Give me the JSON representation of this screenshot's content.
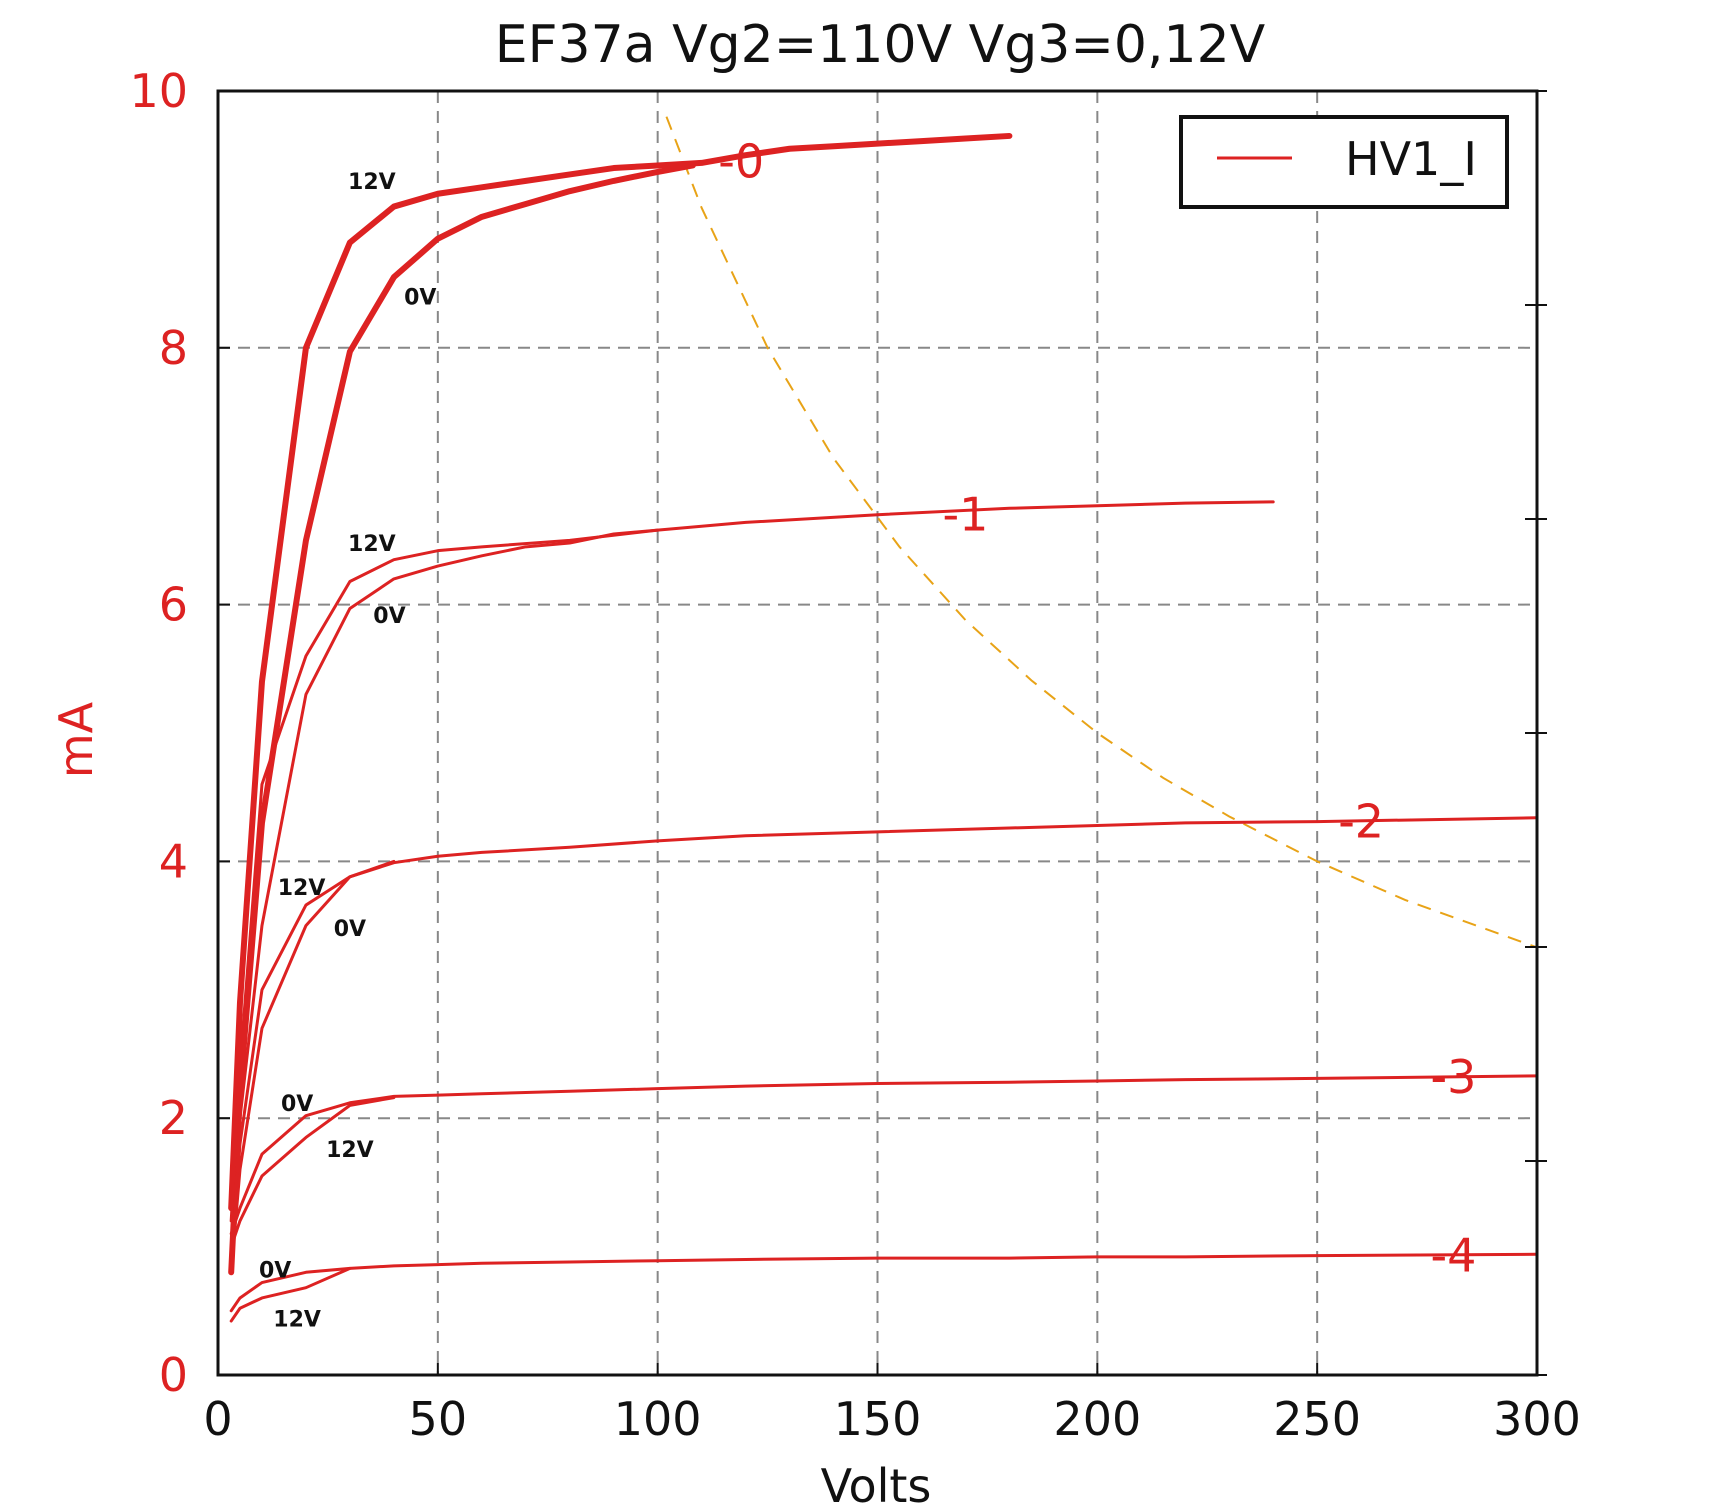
{
  "chart_data": {
    "type": "line",
    "title": "EF37a Vg2=110V Vg3=0,12V",
    "xlabel": "Volts",
    "ylabel": "mA",
    "xlim": [
      0,
      300
    ],
    "ylim": [
      0,
      10
    ],
    "xticks": [
      0,
      50,
      100,
      150,
      200,
      250,
      300
    ],
    "yticks": [
      0,
      2,
      4,
      6,
      8,
      10
    ],
    "grid": true,
    "legend": {
      "position": "top-right",
      "entries": [
        "HV1_I"
      ]
    },
    "colors": {
      "series": "#dd2222",
      "axis_text": "#dd2222",
      "load_line": "#e8a317",
      "grid": "#888888",
      "frame": "#111111"
    },
    "series": [
      {
        "bias_label": "-0",
        "vg3_label": "12V",
        "thick": true,
        "x": [
          3,
          5,
          10,
          20,
          30,
          40,
          50,
          60,
          70,
          80,
          90,
          100,
          110,
          120,
          130,
          140,
          150,
          160,
          170,
          180
        ],
        "y": [
          1.3,
          2.9,
          5.4,
          8.0,
          8.82,
          9.1,
          9.2,
          9.25,
          9.3,
          9.35,
          9.4,
          9.42,
          9.44,
          9.5,
          9.55,
          9.57,
          9.59,
          9.61,
          9.63,
          9.65
        ]
      },
      {
        "bias_label": "-0",
        "vg3_label": "0V",
        "thick": true,
        "x": [
          3,
          5,
          10,
          20,
          30,
          40,
          50,
          60,
          70,
          80,
          90,
          100,
          108
        ],
        "y": [
          0.8,
          2.2,
          4.3,
          6.5,
          7.97,
          8.55,
          8.85,
          9.02,
          9.12,
          9.22,
          9.3,
          9.37,
          9.42
        ]
      },
      {
        "bias_label": "-1",
        "vg3_label": "12V",
        "thick": false,
        "x": [
          3,
          5,
          10,
          20,
          30,
          40,
          50,
          60,
          80,
          100,
          120,
          150,
          180,
          200,
          220,
          240
        ],
        "y": [
          1.2,
          2.4,
          4.6,
          5.6,
          6.18,
          6.35,
          6.42,
          6.45,
          6.5,
          6.58,
          6.64,
          6.7,
          6.75,
          6.77,
          6.79,
          6.8
        ]
      },
      {
        "bias_label": "-1",
        "vg3_label": "0V",
        "thick": false,
        "x": [
          3,
          5,
          10,
          20,
          30,
          40,
          50,
          60,
          70,
          80,
          90,
          100
        ],
        "y": [
          0.8,
          2.0,
          3.5,
          5.3,
          5.97,
          6.2,
          6.3,
          6.38,
          6.45,
          6.48,
          6.55,
          6.58
        ]
      },
      {
        "bias_label": "-2",
        "vg3_label": "12V",
        "thick": false,
        "x": [
          3,
          5,
          10,
          20,
          30,
          40,
          50,
          60,
          80,
          100,
          120,
          150,
          180,
          200,
          220,
          250,
          300
        ],
        "y": [
          0.8,
          1.8,
          3.0,
          3.66,
          3.88,
          3.99,
          4.04,
          4.07,
          4.11,
          4.16,
          4.2,
          4.23,
          4.26,
          4.28,
          4.3,
          4.31,
          4.34
        ]
      },
      {
        "bias_label": "-2",
        "vg3_label": "0V",
        "thick": false,
        "x": [
          3,
          5,
          10,
          20,
          30,
          40
        ],
        "y": [
          0.8,
          1.6,
          2.7,
          3.5,
          3.88,
          4.0
        ]
      },
      {
        "bias_label": "-3",
        "vg3_label": "0V",
        "thick": false,
        "x": [
          3,
          5,
          10,
          20,
          30,
          40,
          50,
          60,
          80,
          100,
          120,
          150,
          180,
          200,
          220,
          250,
          300
        ],
        "y": [
          1.1,
          1.3,
          1.72,
          2.02,
          2.12,
          2.17,
          2.18,
          2.19,
          2.21,
          2.23,
          2.25,
          2.27,
          2.28,
          2.29,
          2.3,
          2.31,
          2.33
        ]
      },
      {
        "bias_label": "-3",
        "vg3_label": "12V",
        "thick": false,
        "x": [
          3,
          5,
          10,
          20,
          30,
          40
        ],
        "y": [
          1.0,
          1.2,
          1.55,
          1.85,
          2.1,
          2.16
        ]
      },
      {
        "bias_label": "-4",
        "vg3_label": "0V",
        "thick": false,
        "x": [
          3,
          5,
          10,
          20,
          30,
          40,
          50,
          60,
          80,
          100,
          120,
          150,
          180,
          200,
          220,
          250,
          300
        ],
        "y": [
          0.5,
          0.6,
          0.72,
          0.8,
          0.83,
          0.85,
          0.86,
          0.87,
          0.88,
          0.89,
          0.9,
          0.91,
          0.91,
          0.92,
          0.92,
          0.93,
          0.94
        ]
      },
      {
        "bias_label": "-4",
        "vg3_label": "12V",
        "thick": false,
        "x": [
          3,
          5,
          10,
          20,
          30
        ],
        "y": [
          0.42,
          0.52,
          0.6,
          0.68,
          0.83
        ]
      }
    ],
    "load_line": {
      "style": "dashed",
      "x": [
        102,
        110,
        125,
        140,
        155,
        170,
        185,
        200,
        215,
        230,
        250,
        270,
        300
      ],
      "y": [
        9.8,
        9.09,
        8.0,
        7.14,
        6.45,
        5.88,
        5.41,
        5.0,
        4.65,
        4.35,
        4.0,
        3.7,
        3.33
      ]
    },
    "bias_labels": [
      {
        "text": "-0",
        "x": 119,
        "y": 9.45
      },
      {
        "text": "-1",
        "x": 170,
        "y": 6.7
      },
      {
        "text": "-2",
        "x": 260,
        "y": 4.31
      },
      {
        "text": "-3",
        "x": 281,
        "y": 2.32
      },
      {
        "text": "-4",
        "x": 281,
        "y": 0.93
      }
    ],
    "vg3_labels": [
      {
        "text": "12V",
        "x": 35,
        "y": 9.3
      },
      {
        "text": "0V",
        "x": 46,
        "y": 8.4
      },
      {
        "text": "12V",
        "x": 35,
        "y": 6.48
      },
      {
        "text": "0V",
        "x": 39,
        "y": 5.92
      },
      {
        "text": "12V",
        "x": 19,
        "y": 3.8
      },
      {
        "text": "0V",
        "x": 30,
        "y": 3.48
      },
      {
        "text": "0V",
        "x": 18,
        "y": 2.12
      },
      {
        "text": "12V",
        "x": 30,
        "y": 1.76
      },
      {
        "text": "0V",
        "x": 13,
        "y": 0.82
      },
      {
        "text": "12V",
        "x": 18,
        "y": 0.44
      }
    ]
  }
}
